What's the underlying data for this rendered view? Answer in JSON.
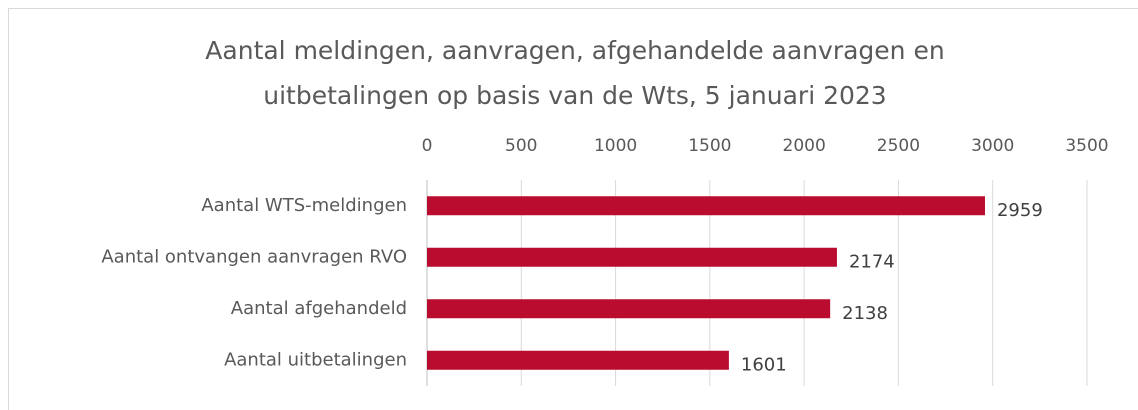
{
  "chart_data": {
    "type": "hbar",
    "title": [
      "Aantal meldingen, aanvragen, afgehandelde aanvragen en",
      "uitbetalingen op basis van de Wts, 5 januari 2023"
    ],
    "categories": [
      "Aantal WTS-meldingen",
      "Aantal ontvangen aanvragen RVO",
      "Aantal afgehandeld",
      "Aantal uitbetalingen"
    ],
    "values": [
      2959,
      2174,
      2138,
      1601
    ],
    "color": "#ba0c2f",
    "xlim": [
      0,
      3500
    ],
    "xticks": [
      0,
      500,
      1000,
      1500,
      2000,
      2500,
      3000,
      3500
    ],
    "grid": true
  }
}
